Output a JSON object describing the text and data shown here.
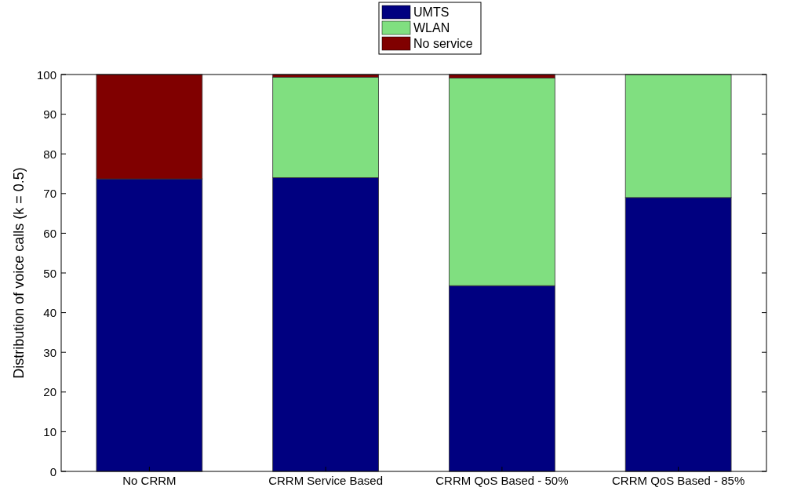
{
  "chart_data": {
    "type": "bar",
    "stacked": true,
    "ylabel": "Distribution of voice calls (k = 0.5)",
    "categories": [
      "No CRRM",
      "CRRM Service Based",
      "CRRM QoS Based - 50%",
      "CRRM QoS Based - 85%"
    ],
    "series": [
      {
        "name": "UMTS",
        "color": "#000080",
        "values": [
          73.7,
          74.0,
          46.8,
          69.0
        ]
      },
      {
        "name": "WLAN",
        "color": "#80df80",
        "values": [
          0,
          25.3,
          52.3,
          31.0
        ]
      },
      {
        "name": "No service",
        "color": "#800000",
        "values": [
          26.3,
          0.7,
          0.9,
          0
        ]
      }
    ],
    "ylim": [
      0,
      100
    ],
    "yticks": [
      0,
      10,
      20,
      30,
      40,
      50,
      60,
      70,
      80,
      90,
      100
    ],
    "grid": false,
    "legend": "top"
  }
}
